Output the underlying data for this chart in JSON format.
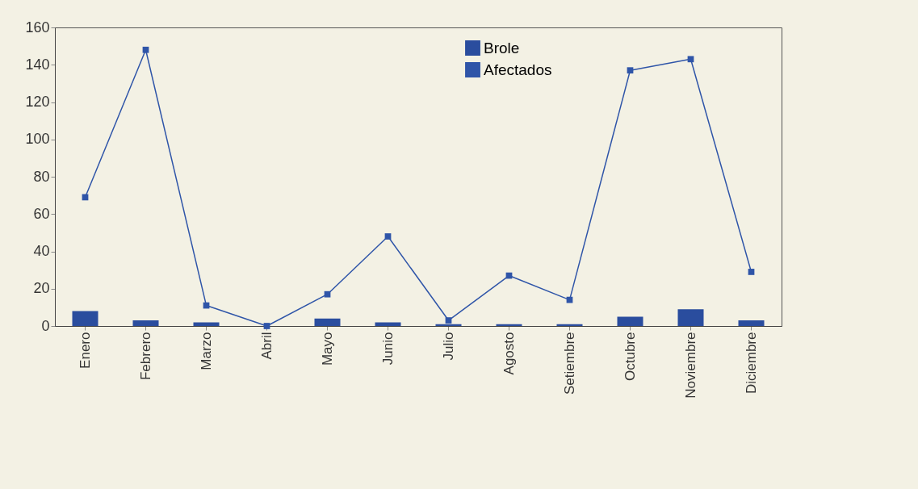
{
  "chart_data": {
    "type": "bar",
    "categories": [
      "Enero",
      "Febrero",
      "Marzo",
      "Abril",
      "Mayo",
      "Junio",
      "Julio",
      "Agosto",
      "Setiembre",
      "Octubre",
      "Noviembre",
      "Diciembre"
    ],
    "series": [
      {
        "name": "Brole",
        "color": "#2a4d9e",
        "values": [
          8,
          3,
          2,
          0,
          4,
          2,
          1,
          1,
          1,
          5,
          9,
          3
        ]
      },
      {
        "name": "Afectados",
        "type": "line",
        "color": "#2f55a8",
        "values": [
          69,
          148,
          11,
          0,
          17,
          48,
          3,
          27,
          14,
          137,
          143,
          29
        ]
      }
    ],
    "ylim": [
      0,
      160
    ],
    "yticks": [
      0,
      20,
      40,
      60,
      80,
      100,
      120,
      140,
      160
    ],
    "grid": false,
    "legend": "top",
    "marker": "square",
    "line_style": "solid"
  }
}
